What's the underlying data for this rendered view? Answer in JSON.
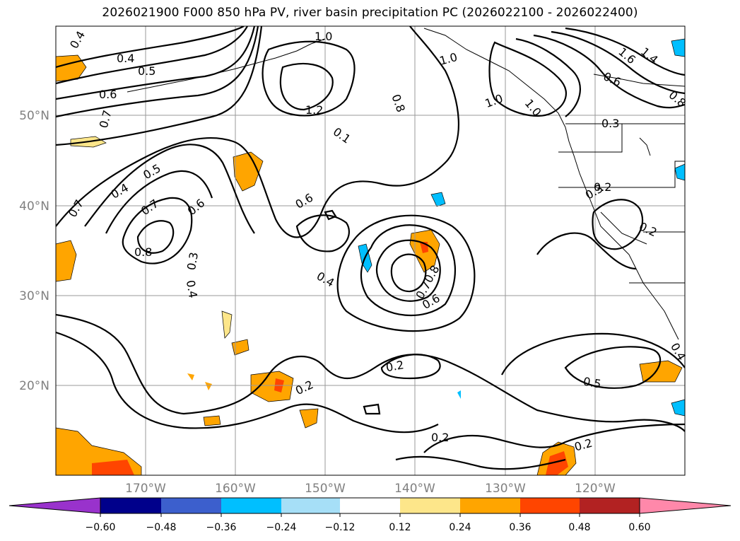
{
  "title": "2026021900 F000 850 hPa PV, river basin precipitation PC (2026022100 - 2026022400)",
  "map": {
    "lon_ticks": [
      "170°W",
      "160°W",
      "150°W",
      "140°W",
      "130°W",
      "120°W"
    ],
    "lat_ticks": [
      "50°N",
      "40°N",
      "30°N",
      "20°N"
    ],
    "contour_labels": [
      "0.4",
      "0.4",
      "0.5",
      "0.6",
      "0.7",
      "0.7",
      "1.0",
      "1.2",
      "0.8",
      "1.0",
      "1.0",
      "1.0",
      "1.6",
      "1.4",
      "0.6",
      "0.8",
      "0.3",
      "0.1",
      "0.5",
      "0.4",
      "0.7",
      "0.6",
      "0.3",
      "0.6",
      "0.8",
      "0.3",
      "0.4",
      "0.4",
      "0.8",
      "0.7",
      "0.6",
      "0.2",
      "0.2",
      "0.2",
      "0.5",
      "0.2",
      "0.2",
      "0.2",
      "0.4"
    ],
    "colors": {
      "land_lines": "#000000",
      "grid": "#999999",
      "shading_pos": [
        "#fde68a",
        "#ffa500",
        "#ff4500"
      ],
      "shading_neg": [
        "#00bfff"
      ]
    }
  },
  "colorbar": {
    "tick_labels": [
      "−0.60",
      "−0.48",
      "−0.36",
      "−0.24",
      "−0.12",
      "0.12",
      "0.24",
      "0.36",
      "0.48",
      "0.60"
    ],
    "colors": [
      "#9932cc",
      "#00008b",
      "#3c5fcd",
      "#00bfff",
      "#a6dff7",
      "#ffffff",
      "#fde68a",
      "#ffa500",
      "#ff4500",
      "#b22222",
      "#ff88aa"
    ]
  }
}
